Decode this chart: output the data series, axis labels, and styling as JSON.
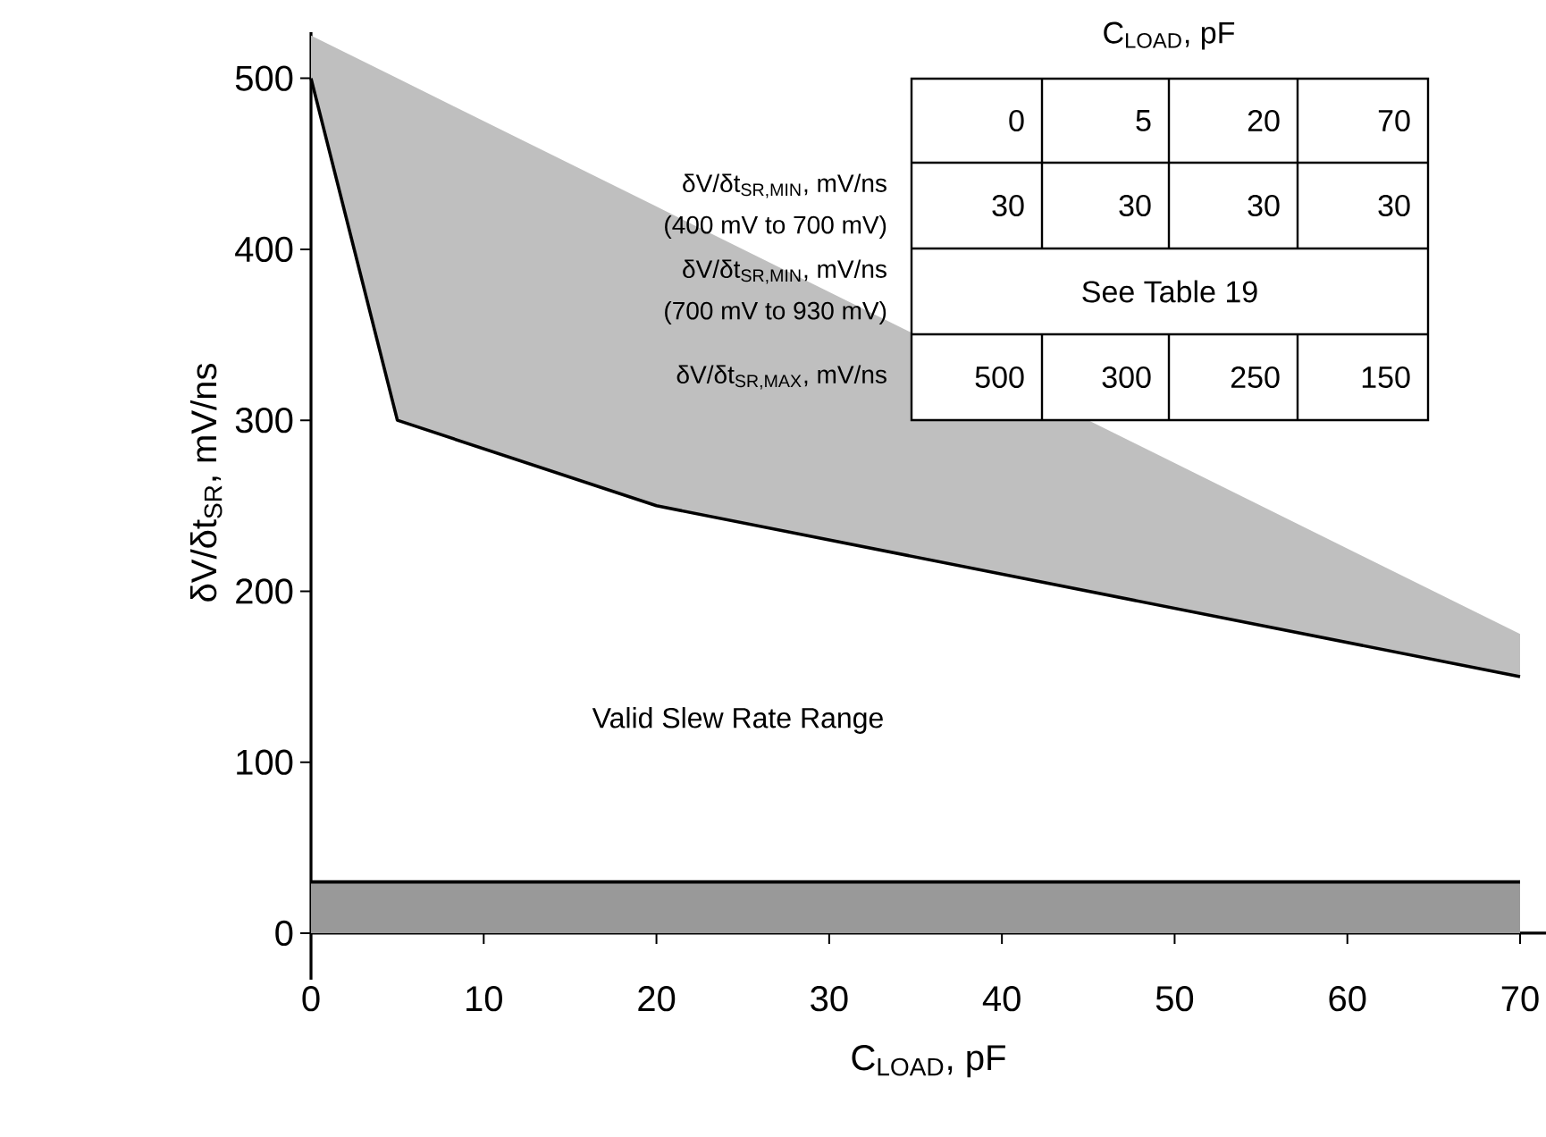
{
  "chart_data": {
    "type": "line",
    "xlabel": "C$_{LOAD}$, pF",
    "ylabel": "δV/δt$_{SR}$, mV/ns",
    "x": [
      0,
      5,
      20,
      70
    ],
    "series": [
      {
        "color": "#000000",
        "values": [
          500,
          300,
          250,
          150
        ],
        "lower": [
          500,
          300,
          250,
          150
        ],
        "upper": [
          525,
          500,
          425,
          175
        ]
      },
      {
        "color": "#000000",
        "values": [
          30,
          30,
          30,
          30
        ],
        "lower": [
          0,
          0,
          0,
          0
        ],
        "upper": [
          30,
          30,
          30,
          30
        ]
      }
    ],
    "xlim": [
      0,
      71.5
    ],
    "ylim": [
      0,
      527
    ],
    "xticks": [
      0,
      10,
      20,
      30,
      40,
      50,
      60,
      70
    ],
    "yticks": [
      0,
      100,
      200,
      300,
      400,
      500
    ],
    "grid": false,
    "marker": "none",
    "line_style": "solid",
    "annotations": [
      "C$_{LOAD}$, pF",
      "0",
      "5",
      "20",
      "70",
      "δV/δt$_{SR,MIN}$, mV/ns",
      "(400 mV to 700 mV)",
      "30",
      "30",
      "30",
      "30",
      "δV/δt$_{SR,MIN}$, mV/ns",
      "(700 mV to 930 mV)",
      "See Table 19",
      "δV/δt$_{SR,MAX}$, mV/ns",
      "500",
      "300",
      "250",
      "150",
      "Valid Slew Rate Range"
    ]
  }
}
